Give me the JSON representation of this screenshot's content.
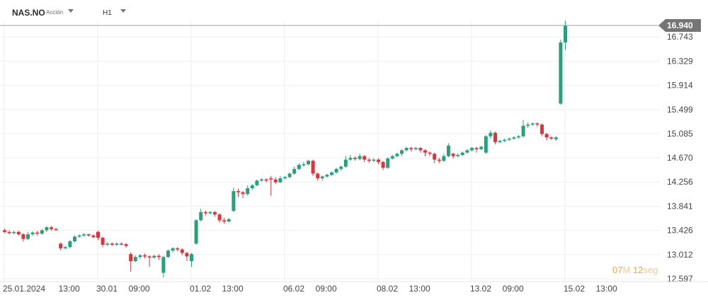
{
  "toolbar": {
    "symbol": "NAS.NO",
    "asset_type": "Acción",
    "timeframe": "H1",
    "caret_icon": "chevron-down-icon"
  },
  "countdown": {
    "minutes": "07",
    "minutes_unit": "M",
    "seconds": "12",
    "seconds_unit": "seg"
  },
  "colors": {
    "up": "#26a17b",
    "down": "#e0323b",
    "grid": "#eeeeee",
    "axis_text": "#444444",
    "price_badge": "#757575",
    "price_line": "#a0a0a0"
  },
  "chart_data": {
    "type": "candlestick",
    "title": "",
    "xlabel": "",
    "ylabel": "",
    "current_price": 16.94,
    "y_ticks": [
      "16.940",
      "16.743",
      "16.329",
      "15.914",
      "15.499",
      "15.085",
      "14.670",
      "14.256",
      "13.841",
      "13.426",
      "13.012",
      "12.597"
    ],
    "x_ticks": [
      {
        "label": "25.01.2024",
        "bar": 0
      },
      {
        "label": "13:00",
        "bar": 11
      },
      {
        "label": "30.01",
        "bar": 20
      },
      {
        "label": "09:00",
        "bar": 26
      },
      {
        "label": "01.02",
        "bar": 40
      },
      {
        "label": "13:00",
        "bar": 46
      },
      {
        "label": "06.02",
        "bar": 60
      },
      {
        "label": "09:00",
        "bar": 66
      },
      {
        "label": "08.02",
        "bar": 80
      },
      {
        "label": "13:00",
        "bar": 86
      },
      {
        "label": "13.02",
        "bar": 100
      },
      {
        "label": "09:00",
        "bar": 106
      },
      {
        "label": "15.02",
        "bar": 120
      },
      {
        "label": "13:00",
        "bar": 126
      }
    ],
    "grid": true,
    "ylim": [
      12.52,
      17.0
    ],
    "candles": [
      [
        13.43,
        13.4,
        13.46,
        13.38
      ],
      [
        13.4,
        13.38,
        13.43,
        13.36
      ],
      [
        13.38,
        13.4,
        13.42,
        13.36
      ],
      [
        13.4,
        13.36,
        13.42,
        13.34
      ],
      [
        13.36,
        13.28,
        13.38,
        13.24
      ],
      [
        13.28,
        13.36,
        13.4,
        13.26
      ],
      [
        13.36,
        13.39,
        13.41,
        13.33
      ],
      [
        13.39,
        13.37,
        13.42,
        13.34
      ],
      [
        13.37,
        13.43,
        13.45,
        13.35
      ],
      [
        13.43,
        13.48,
        13.5,
        13.4
      ],
      [
        13.48,
        13.45,
        13.5,
        13.42
      ],
      [
        13.45,
        13.44,
        13.47,
        13.42
      ],
      [
        13.2,
        13.12,
        13.22,
        13.08
      ],
      [
        13.12,
        13.14,
        13.16,
        13.1
      ],
      [
        13.14,
        13.24,
        13.26,
        13.12
      ],
      [
        13.24,
        13.32,
        13.34,
        13.22
      ],
      [
        13.32,
        13.34,
        13.36,
        13.3
      ],
      [
        13.34,
        13.36,
        13.38,
        13.32
      ],
      [
        13.36,
        13.34,
        13.37,
        13.32
      ],
      [
        13.34,
        13.31,
        13.36,
        13.29
      ],
      [
        13.4,
        13.3,
        13.42,
        13.26
      ],
      [
        13.3,
        13.18,
        13.32,
        13.14
      ],
      [
        13.18,
        13.2,
        13.22,
        13.16
      ],
      [
        13.2,
        13.18,
        13.22,
        13.16
      ],
      [
        13.18,
        13.2,
        13.22,
        13.16
      ],
      [
        13.2,
        13.19,
        13.22,
        13.17
      ],
      [
        13.19,
        13.16,
        13.21,
        13.13
      ],
      [
        13.02,
        12.9,
        13.05,
        12.72
      ],
      [
        12.9,
        12.97,
        13.0,
        12.88
      ],
      [
        12.97,
        13.0,
        13.02,
        12.94
      ],
      [
        13.0,
        12.98,
        13.03,
        12.95
      ],
      [
        12.98,
        12.96,
        13.0,
        12.8
      ],
      [
        12.96,
        12.99,
        13.01,
        12.94
      ],
      [
        12.99,
        12.97,
        13.02,
        12.92
      ],
      [
        12.7,
        12.97,
        12.99,
        12.62
      ],
      [
        12.97,
        13.08,
        13.1,
        12.95
      ],
      [
        13.08,
        13.12,
        13.14,
        13.05
      ],
      [
        13.12,
        13.1,
        13.14,
        13.07
      ],
      [
        13.1,
        13.04,
        13.12,
        13.0
      ],
      [
        13.04,
        12.98,
        13.06,
        12.9
      ],
      [
        12.9,
        13.02,
        13.04,
        12.8
      ],
      [
        13.2,
        13.6,
        13.62,
        13.18
      ],
      [
        13.6,
        13.74,
        13.8,
        13.58
      ],
      [
        13.74,
        13.72,
        13.77,
        13.68
      ],
      [
        13.72,
        13.74,
        13.76,
        13.7
      ],
      [
        13.74,
        13.7,
        13.76,
        13.66
      ],
      [
        13.7,
        13.6,
        13.72,
        13.56
      ],
      [
        13.6,
        13.58,
        13.64,
        13.54
      ],
      [
        13.58,
        13.62,
        13.64,
        13.56
      ],
      [
        13.76,
        14.1,
        14.16,
        13.74
      ],
      [
        14.1,
        14.08,
        14.14,
        14.0
      ],
      [
        14.08,
        14.05,
        14.1,
        13.98
      ],
      [
        14.05,
        14.15,
        14.2,
        14.02
      ],
      [
        14.15,
        14.2,
        14.22,
        14.12
      ],
      [
        14.2,
        14.28,
        14.3,
        14.18
      ],
      [
        14.28,
        14.3,
        14.32,
        14.26
      ],
      [
        14.3,
        14.28,
        14.32,
        14.25
      ],
      [
        14.32,
        14.3,
        14.36,
        14.02
      ],
      [
        14.3,
        14.25,
        14.34,
        14.22
      ],
      [
        14.25,
        14.32,
        14.36,
        14.24
      ],
      [
        14.32,
        14.34,
        14.36,
        14.3
      ],
      [
        14.34,
        14.4,
        14.42,
        14.32
      ],
      [
        14.4,
        14.48,
        14.52,
        14.38
      ],
      [
        14.48,
        14.55,
        14.58,
        14.46
      ],
      [
        14.55,
        14.56,
        14.6,
        14.52
      ],
      [
        14.56,
        14.62,
        14.64,
        14.54
      ],
      [
        14.62,
        14.4,
        14.64,
        14.36
      ],
      [
        14.4,
        14.32,
        14.42,
        14.28
      ],
      [
        14.32,
        14.35,
        14.37,
        14.28
      ],
      [
        14.35,
        14.38,
        14.4,
        14.33
      ],
      [
        14.38,
        14.42,
        14.44,
        14.36
      ],
      [
        14.42,
        14.48,
        14.5,
        14.4
      ],
      [
        14.48,
        14.52,
        14.54,
        14.45
      ],
      [
        14.52,
        14.64,
        14.7,
        14.5
      ],
      [
        14.64,
        14.67,
        14.72,
        14.62
      ],
      [
        14.67,
        14.65,
        14.7,
        14.62
      ],
      [
        14.65,
        14.7,
        14.74,
        14.63
      ],
      [
        14.7,
        14.64,
        14.72,
        14.6
      ],
      [
        14.64,
        14.62,
        14.67,
        14.58
      ],
      [
        14.62,
        14.64,
        14.66,
        14.6
      ],
      [
        14.64,
        14.6,
        14.66,
        14.56
      ],
      [
        14.6,
        14.5,
        14.62,
        14.46
      ],
      [
        14.5,
        14.66,
        14.68,
        14.48
      ],
      [
        14.66,
        14.7,
        14.72,
        14.64
      ],
      [
        14.7,
        14.74,
        14.76,
        14.68
      ],
      [
        14.74,
        14.8,
        14.82,
        14.7
      ],
      [
        14.8,
        14.84,
        14.86,
        14.78
      ],
      [
        14.84,
        14.82,
        14.86,
        14.78
      ],
      [
        14.82,
        14.84,
        14.86,
        14.8
      ],
      [
        14.84,
        14.8,
        14.86,
        14.76
      ],
      [
        14.8,
        14.76,
        14.82,
        14.7
      ],
      [
        14.76,
        14.74,
        14.78,
        14.7
      ],
      [
        14.74,
        14.64,
        14.76,
        14.58
      ],
      [
        14.64,
        14.62,
        14.67,
        14.58
      ],
      [
        14.62,
        14.7,
        14.74,
        14.6
      ],
      [
        14.7,
        14.88,
        14.92,
        14.68
      ],
      [
        14.74,
        14.7,
        14.76,
        14.66
      ],
      [
        14.7,
        14.72,
        14.75,
        14.68
      ],
      [
        14.72,
        14.76,
        14.78,
        14.7
      ],
      [
        14.76,
        14.8,
        14.82,
        14.74
      ],
      [
        14.8,
        14.84,
        14.86,
        14.78
      ],
      [
        14.84,
        14.82,
        14.86,
        14.76
      ],
      [
        14.82,
        14.86,
        14.88,
        14.8
      ],
      [
        14.76,
        15.04,
        15.06,
        14.74
      ],
      [
        15.04,
        15.1,
        15.14,
        15.0
      ],
      [
        15.1,
        14.94,
        15.12,
        14.9
      ],
      [
        14.94,
        14.96,
        14.98,
        14.92
      ],
      [
        14.96,
        14.98,
        15.0,
        14.94
      ],
      [
        14.98,
        15.0,
        15.02,
        14.96
      ],
      [
        15.0,
        15.02,
        15.04,
        14.98
      ],
      [
        15.02,
        15.04,
        15.06,
        15.0
      ],
      [
        15.04,
        15.22,
        15.32,
        15.02
      ],
      [
        15.22,
        15.24,
        15.28,
        15.18
      ],
      [
        15.24,
        15.26,
        15.28,
        15.22
      ],
      [
        15.26,
        15.24,
        15.28,
        15.2
      ],
      [
        15.24,
        15.08,
        15.26,
        15.04
      ],
      [
        15.08,
        15.02,
        15.1,
        14.97
      ],
      [
        15.02,
        15.0,
        15.04,
        14.98
      ],
      [
        14.99,
        15.02,
        15.04,
        14.96
      ],
      [
        15.6,
        16.65,
        16.7,
        15.58
      ],
      [
        16.65,
        16.94,
        17.02,
        16.52
      ]
    ]
  }
}
